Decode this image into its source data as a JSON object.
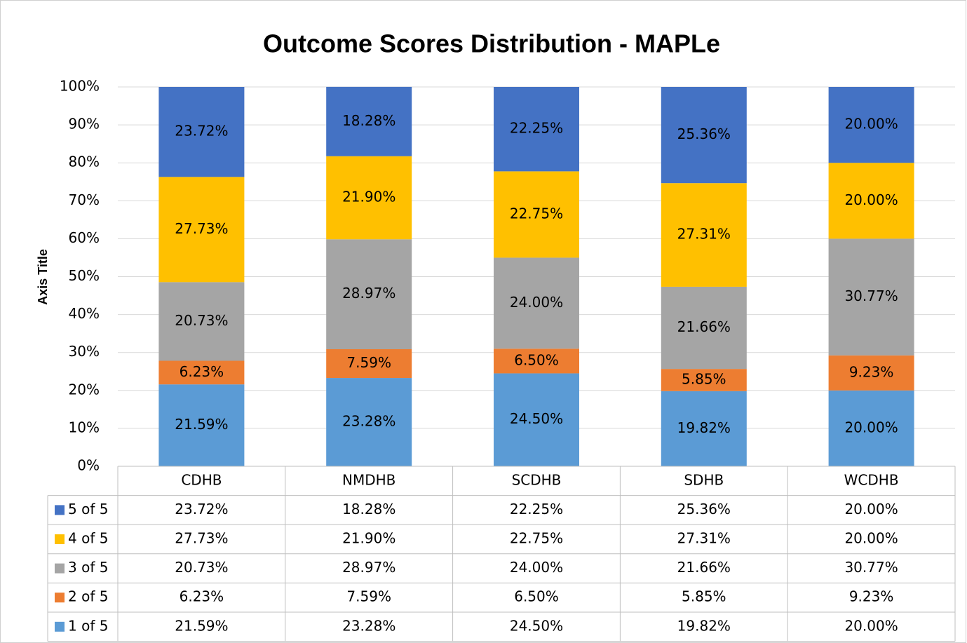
{
  "chart_data": {
    "type": "stacked_bar",
    "title": "Outcome Scores Distribution - MAPLe",
    "y_axis_label": "Axis Title",
    "categories": [
      "CDHB",
      "NMDHB",
      "SCDHB",
      "SDHB",
      "WCDHB"
    ],
    "series": [
      {
        "name": "1 of 5",
        "color": "#5b9bd5",
        "values": [
          21.59,
          23.28,
          24.5,
          19.82,
          20.0
        ],
        "value_labels": [
          "21.59%",
          "23.28%",
          "24.50%",
          "19.82%",
          "20.00%"
        ]
      },
      {
        "name": "2 of 5",
        "color": "#ed7d31",
        "values": [
          6.23,
          7.59,
          6.5,
          5.85,
          9.23
        ],
        "value_labels": [
          "6.23%",
          "7.59%",
          "6.50%",
          "5.85%",
          "9.23%"
        ]
      },
      {
        "name": "3 of 5",
        "color": "#a5a5a5",
        "values": [
          20.73,
          28.97,
          24.0,
          21.66,
          30.77
        ],
        "value_labels": [
          "20.73%",
          "28.97%",
          "24.00%",
          "21.66%",
          "30.77%"
        ]
      },
      {
        "name": "4 of 5",
        "color": "#ffc000",
        "values": [
          27.73,
          21.9,
          22.75,
          27.31,
          20.0
        ],
        "value_labels": [
          "27.73%",
          "21.90%",
          "22.75%",
          "27.31%",
          "20.00%"
        ]
      },
      {
        "name": "5 of 5",
        "color": "#4472c4",
        "values": [
          23.72,
          18.28,
          22.25,
          25.36,
          20.0
        ],
        "value_labels": [
          "23.72%",
          "18.28%",
          "22.25%",
          "25.36%",
          "20.00%"
        ]
      }
    ],
    "ylim": [
      0,
      100
    ],
    "yticks": [
      {
        "value": 0,
        "label": "0%"
      },
      {
        "value": 10,
        "label": "10%"
      },
      {
        "value": 20,
        "label": "20%"
      },
      {
        "value": 30,
        "label": "30%"
      },
      {
        "value": 40,
        "label": "40%"
      },
      {
        "value": 50,
        "label": "50%"
      },
      {
        "value": 60,
        "label": "60%"
      },
      {
        "value": 70,
        "label": "70%"
      },
      {
        "value": 80,
        "label": "80%"
      },
      {
        "value": 90,
        "label": "90%"
      },
      {
        "value": 100,
        "label": "100%"
      }
    ],
    "grid": true,
    "data_table": true
  }
}
